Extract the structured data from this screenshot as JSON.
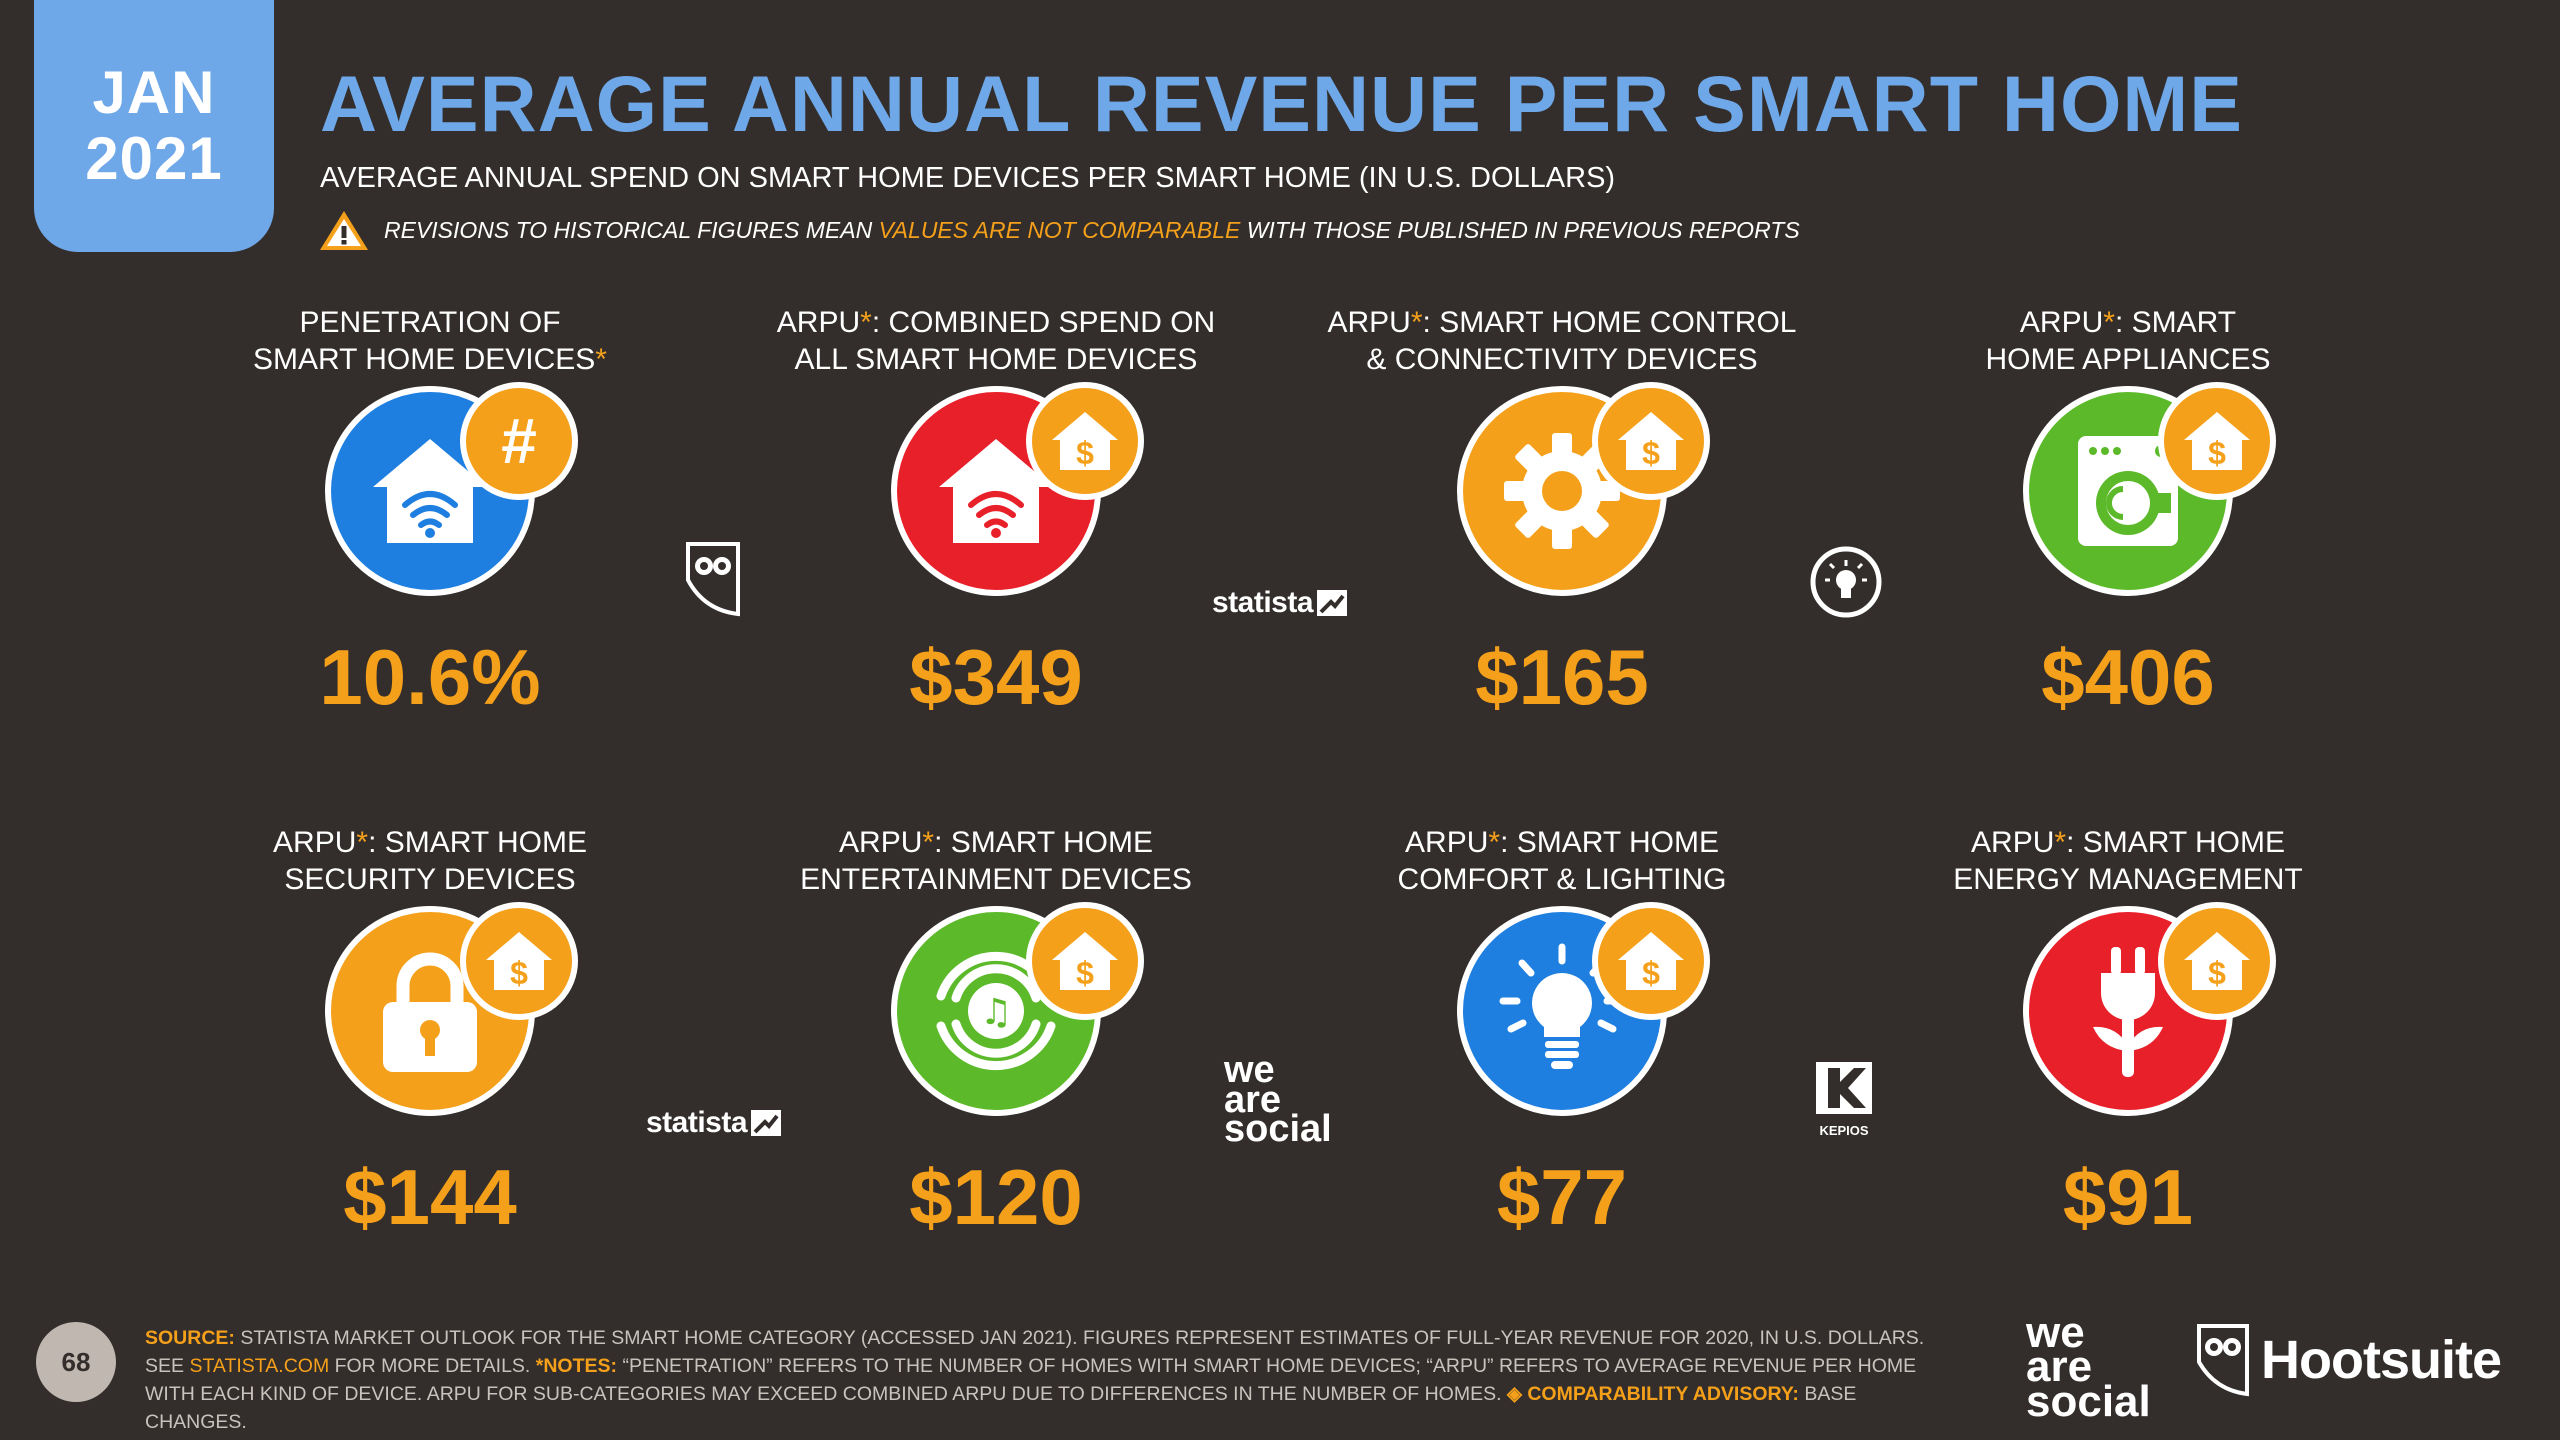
{
  "date": {
    "month": "JAN",
    "year": "2021"
  },
  "title": "AVERAGE ANNUAL REVENUE PER SMART HOME",
  "subtitle": "AVERAGE ANNUAL SPEND ON SMART HOME DEVICES PER SMART HOME (IN U.S. DOLLARS)",
  "warning": {
    "before": "REVISIONS TO HISTORICAL FIGURES MEAN ",
    "highlight": "VALUES ARE NOT COMPARABLE",
    "after": " WITH THOSE PUBLISHED IN PREVIOUS REPORTS"
  },
  "colors": {
    "background": "#332e2b",
    "title_blue": "#6fa8e8",
    "accent_orange": "#f5a01a",
    "blue": "#1e7fe0",
    "red": "#e8202a",
    "orange": "#f5a01a",
    "green": "#5cba2a"
  },
  "panels": [
    {
      "line1": "PENETRATION OF",
      "line2a": "SMART HOME DEVICES",
      "line2star": "*",
      "value": "10.6%",
      "icon": "wifi-house-icon",
      "badge": "hash-icon",
      "color": "#1e7fe0"
    },
    {
      "line1a": "ARPU",
      "line1star": "*",
      "line1b": ": COMBINED SPEND ON",
      "line2": "ALL SMART HOME DEVICES",
      "value": "$349",
      "icon": "wifi-house-icon",
      "badge": "dollar-house-icon",
      "color": "#e8202a"
    },
    {
      "line1a": "ARPU",
      "line1star": "*",
      "line1b": ": SMART HOME CONTROL",
      "line2": "& CONNECTIVITY DEVICES",
      "value": "$165",
      "icon": "gear-icon",
      "badge": "dollar-house-icon",
      "color": "#f5a01a"
    },
    {
      "line1a": "ARPU",
      "line1star": "*",
      "line1b": ": SMART",
      "line2": "HOME APPLIANCES",
      "value": "$406",
      "icon": "washing-machine-icon",
      "badge": "dollar-house-icon",
      "color": "#5cba2a"
    },
    {
      "line1a": "ARPU",
      "line1star": "*",
      "line1b": ": SMART HOME",
      "line2": "SECURITY DEVICES",
      "value": "$144",
      "icon": "padlock-icon",
      "badge": "dollar-house-icon",
      "color": "#f5a01a"
    },
    {
      "line1a": "ARPU",
      "line1star": "*",
      "line1b": ": SMART HOME",
      "line2": "ENTERTAINMENT DEVICES",
      "value": "$120",
      "icon": "speaker-music-icon",
      "badge": "dollar-house-icon",
      "color": "#5cba2a"
    },
    {
      "line1a": "ARPU",
      "line1star": "*",
      "line1b": ": SMART HOME",
      "line2": "COMFORT & LIGHTING",
      "value": "$77",
      "icon": "light-bulb-icon",
      "badge": "dollar-house-icon",
      "color": "#1e7fe0"
    },
    {
      "line1a": "ARPU",
      "line1star": "*",
      "line1b": ": SMART HOME",
      "line2": "ENERGY MANAGEMENT",
      "value": "$91",
      "icon": "plug-icon",
      "badge": "dollar-house-icon",
      "color": "#e8202a"
    }
  ],
  "logos": {
    "statista": "statista",
    "kepios": "KEPIOS",
    "was1": "we",
    "was2": "are",
    "was3": "social",
    "hootsuite": "Hootsuite"
  },
  "page_number": "68",
  "footer": {
    "source_label": "SOURCE:",
    "source_text": " STATISTA MARKET OUTLOOK FOR THE SMART HOME CATEGORY (ACCESSED JAN 2021). FIGURES REPRESENT ESTIMATES OF FULL-YEAR REVENUE FOR 2020, IN U.S. DOLLARS.",
    "see": "SEE ",
    "link": "STATISTA.COM",
    "more": " FOR MORE DETAILS. ",
    "notes_label": "*NOTES:",
    "notes_text": " “PENETRATION” REFERS TO THE NUMBER OF HOMES WITH SMART HOME DEVICES; “ARPU” REFERS TO AVERAGE REVENUE PER HOME WITH EACH KIND OF DEVICE. ARPU FOR SUB-CATEGORIES MAY EXCEED COMBINED ARPU DUE TO DIFFERENCES IN THE NUMBER OF HOMES. ",
    "advisory_label": "◈ COMPARABILITY ADVISORY:",
    "advisory_text": " BASE CHANGES."
  }
}
